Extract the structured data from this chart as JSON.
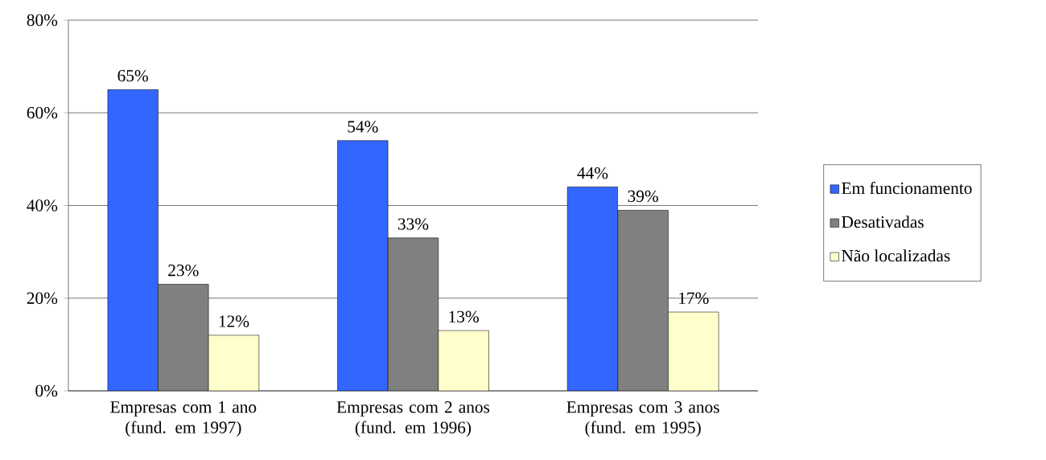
{
  "chart_data": {
    "type": "bar",
    "categories": [
      "Empresas com 1 ano (fund. em 1997)",
      "Empresas com 2 anos (fund. em 1996)",
      "Empresas com 3 anos (fund. em 1995)"
    ],
    "series": [
      {
        "name": "Em funcionamento",
        "color": "#3366ff",
        "values": [
          65,
          54,
          44
        ],
        "value_labels": [
          "65%",
          "54%",
          "44%"
        ]
      },
      {
        "name": "Desativadas",
        "color": "#808080",
        "values": [
          23,
          33,
          39
        ],
        "value_labels": [
          "23%",
          "33%",
          "39%"
        ]
      },
      {
        "name": "Não localizadas",
        "color": "#ffffcc",
        "values": [
          12,
          13,
          17
        ],
        "value_labels": [
          "12%",
          "13%",
          "17%"
        ]
      }
    ],
    "ylim": [
      0,
      80
    ],
    "yticks": [
      {
        "value": 0,
        "label": "0%"
      },
      {
        "value": 20,
        "label": "20%"
      },
      {
        "value": 40,
        "label": "40%"
      },
      {
        "value": 60,
        "label": "60%"
      },
      {
        "value": 80,
        "label": "80%"
      }
    ],
    "grid": "y",
    "legend": "right"
  }
}
